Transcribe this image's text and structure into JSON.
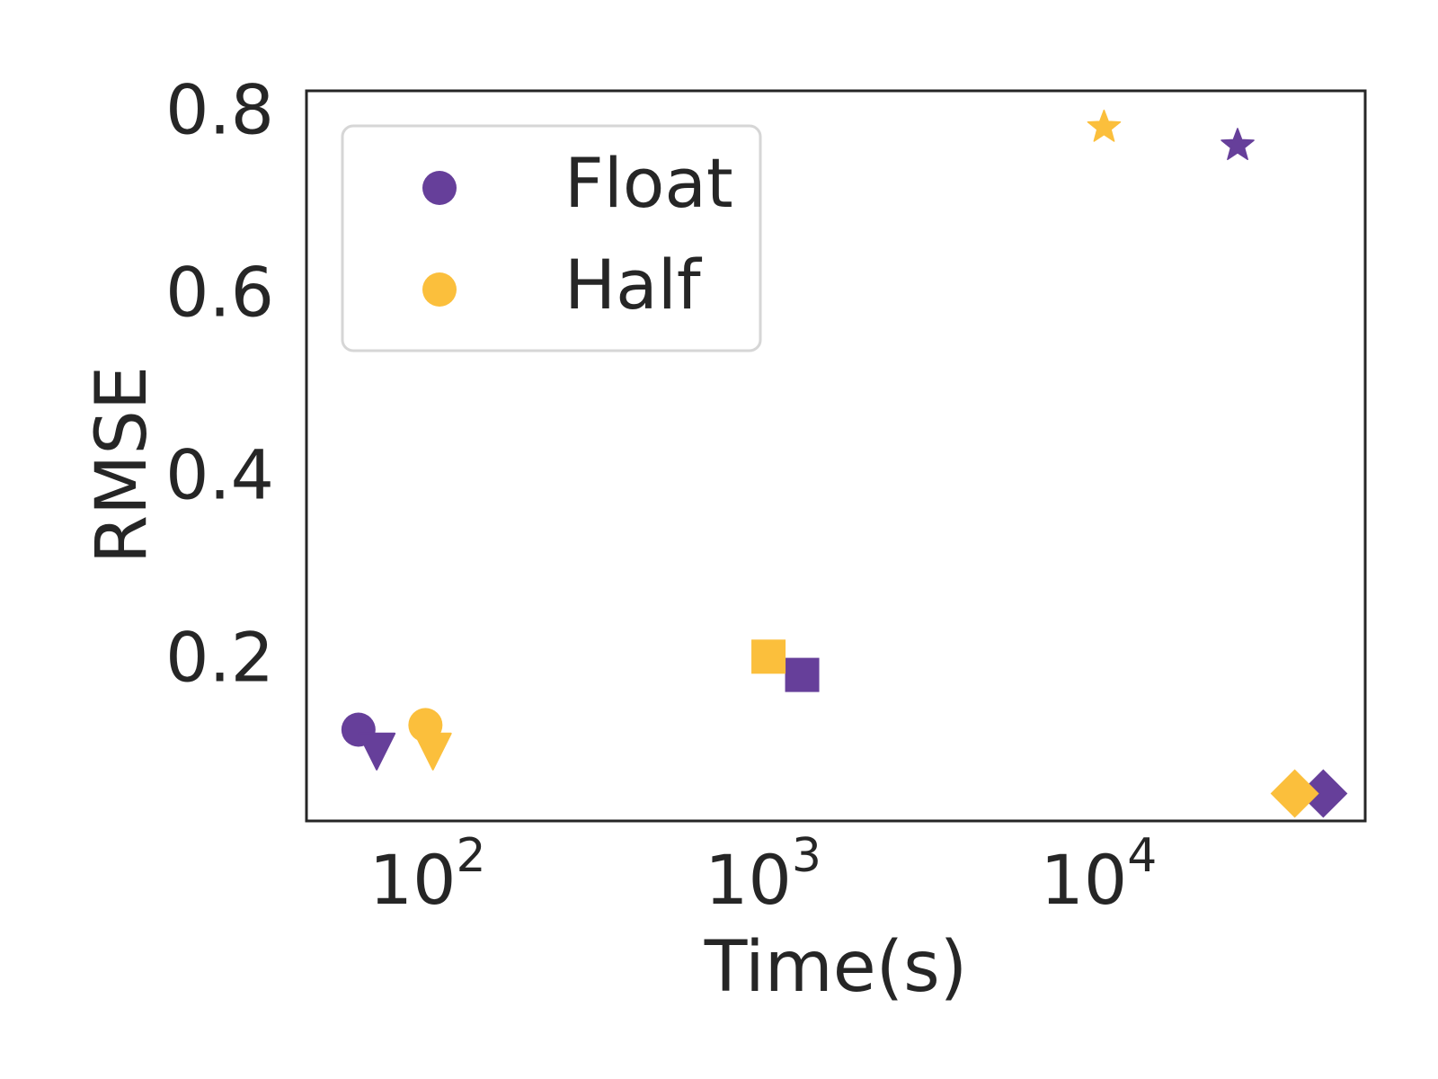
{
  "chart_data": {
    "type": "scatter",
    "title": "",
    "xlabel": "Time(s)",
    "ylabel": "RMSE",
    "xscale": "log",
    "xlim": [
      42,
      60000
    ],
    "ylim": [
      0.02,
      0.82
    ],
    "x_ticks": [
      {
        "value": 100,
        "base": "10",
        "exp": "2"
      },
      {
        "value": 1000,
        "base": "10",
        "exp": "3"
      },
      {
        "value": 10000,
        "base": "10",
        "exp": "4"
      }
    ],
    "y_ticks": [
      {
        "value": 0.2,
        "label": "0.2"
      },
      {
        "value": 0.4,
        "label": "0.4"
      },
      {
        "value": 0.6,
        "label": "0.6"
      },
      {
        "value": 0.8,
        "label": "0.8"
      }
    ],
    "grid": false,
    "legend": {
      "placement": "upper-left",
      "marker": "circle",
      "entries": [
        "Float",
        "Half"
      ]
    },
    "colors": {
      "Float": "#663f9a",
      "Half": "#fbbf3c"
    },
    "series": [
      {
        "name": "Float",
        "points": [
          {
            "x": 60,
            "y": 0.12,
            "marker": "circle"
          },
          {
            "x": 68,
            "y": 0.1,
            "marker": "triangle-down"
          },
          {
            "x": 1260,
            "y": 0.18,
            "marker": "square"
          },
          {
            "x": 25000,
            "y": 0.76,
            "marker": "star"
          },
          {
            "x": 45000,
            "y": 0.05,
            "marker": "diamond"
          }
        ]
      },
      {
        "name": "Half",
        "points": [
          {
            "x": 95,
            "y": 0.125,
            "marker": "circle"
          },
          {
            "x": 100,
            "y": 0.1,
            "marker": "triangle-down"
          },
          {
            "x": 1000,
            "y": 0.2,
            "marker": "square"
          },
          {
            "x": 10000,
            "y": 0.78,
            "marker": "star"
          },
          {
            "x": 37000,
            "y": 0.05,
            "marker": "diamond"
          }
        ]
      }
    ]
  }
}
